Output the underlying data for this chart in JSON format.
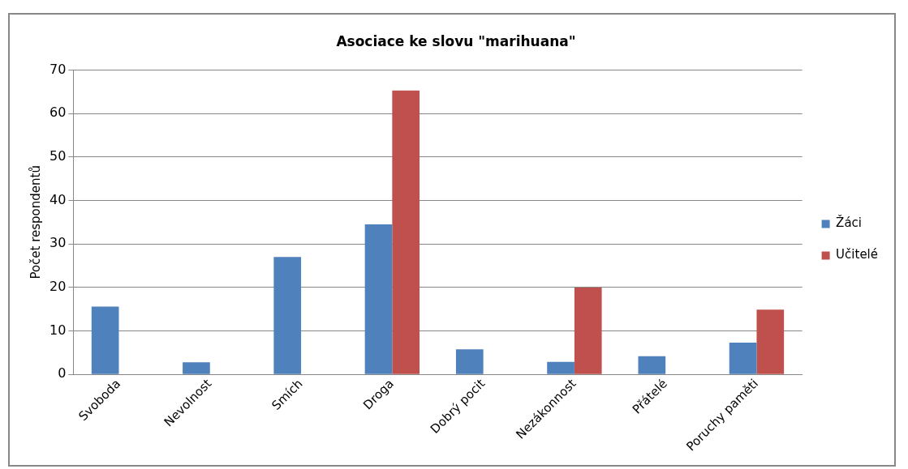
{
  "chart_data": {
    "type": "bar",
    "title": "Asociace ke slovu \"marihuana\"",
    "ylabel": "Počet respondentů",
    "categories": [
      "Svoboda",
      "Nevolnost",
      "Smích",
      "Droga",
      "Dobrý pocit",
      "Nezákonnost",
      "Přátelé",
      "Poruchy paměti"
    ],
    "series": [
      {
        "name": "Žáci",
        "color": "#4f81bd",
        "values": [
          15.6,
          2.8,
          27,
          34.5,
          5.8,
          2.9,
          4.2,
          7.3
        ]
      },
      {
        "name": "Učitelé",
        "color": "#c0504d",
        "values": [
          0,
          0,
          0,
          65.3,
          0,
          20,
          0,
          14.9
        ]
      }
    ],
    "ylim": [
      0,
      70
    ],
    "yticks": [
      0,
      10,
      20,
      30,
      40,
      50,
      60,
      70
    ],
    "grid": "y",
    "legend": "right"
  }
}
